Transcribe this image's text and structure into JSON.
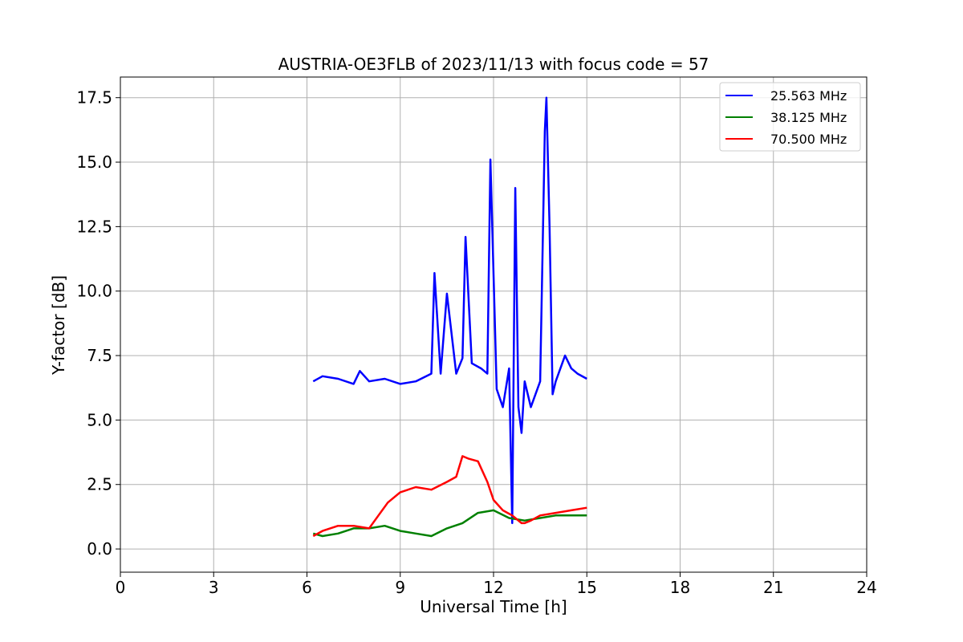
{
  "chart_data": {
    "type": "line",
    "title": "AUSTRIA-OE3FLB of 2023/11/13 with focus code = 57",
    "xlabel": "Universal Time [h]",
    "ylabel": "Y-factor [dB]",
    "xlim": [
      0,
      24
    ],
    "ylim": [
      -0.9,
      18.3
    ],
    "xticks": [
      0,
      3,
      6,
      9,
      12,
      15,
      18,
      21,
      24
    ],
    "xtick_labels": [
      "0",
      "3",
      "6",
      "9",
      "12",
      "15",
      "18",
      "21",
      "24"
    ],
    "yticks": [
      0.0,
      2.5,
      5.0,
      7.5,
      10.0,
      12.5,
      15.0,
      17.5
    ],
    "ytick_labels": [
      "0.0",
      "2.5",
      "5.0",
      "7.5",
      "10.0",
      "12.5",
      "15.0",
      "17.5"
    ],
    "grid": true,
    "legend_position": "upper right",
    "series": [
      {
        "name": "25.563 MHz",
        "color": "#0000ff",
        "x": [
          6.2,
          6.5,
          7.0,
          7.5,
          7.7,
          8.0,
          8.5,
          9.0,
          9.5,
          10.0,
          10.1,
          10.3,
          10.5,
          10.8,
          11.0,
          11.1,
          11.3,
          11.6,
          11.8,
          11.9,
          12.1,
          12.3,
          12.5,
          12.6,
          12.7,
          12.8,
          12.9,
          13.0,
          13.2,
          13.5,
          13.65,
          13.7,
          13.8,
          13.9,
          14.0,
          14.3,
          14.5,
          14.7,
          15.0
        ],
        "y": [
          6.5,
          6.7,
          6.6,
          6.4,
          6.9,
          6.5,
          6.6,
          6.4,
          6.5,
          6.8,
          10.7,
          6.8,
          9.9,
          6.8,
          7.4,
          12.1,
          7.2,
          7.0,
          6.8,
          15.1,
          6.2,
          5.5,
          7.0,
          1.0,
          14.0,
          5.5,
          4.5,
          6.5,
          5.5,
          6.5,
          16.2,
          17.5,
          12.5,
          6.0,
          6.5,
          7.5,
          7.0,
          6.8,
          6.6
        ]
      },
      {
        "name": "38.125 MHz",
        "color": "#008000",
        "x": [
          6.2,
          6.5,
          7.0,
          7.5,
          8.0,
          8.5,
          9.0,
          9.5,
          10.0,
          10.5,
          11.0,
          11.5,
          12.0,
          12.5,
          13.0,
          13.5,
          14.0,
          14.5,
          15.0
        ],
        "y": [
          0.6,
          0.5,
          0.6,
          0.8,
          0.8,
          0.9,
          0.7,
          0.6,
          0.5,
          0.8,
          1.0,
          1.4,
          1.5,
          1.2,
          1.1,
          1.2,
          1.3,
          1.3,
          1.3
        ]
      },
      {
        "name": "70.500 MHz",
        "color": "#ff0000",
        "x": [
          6.2,
          6.5,
          7.0,
          7.5,
          8.0,
          8.3,
          8.6,
          9.0,
          9.5,
          10.0,
          10.5,
          10.8,
          11.0,
          11.2,
          11.5,
          11.8,
          12.0,
          12.3,
          12.6,
          12.9,
          13.0,
          13.2,
          13.5,
          14.0,
          14.5,
          15.0
        ],
        "y": [
          0.5,
          0.7,
          0.9,
          0.9,
          0.8,
          1.3,
          1.8,
          2.2,
          2.4,
          2.3,
          2.6,
          2.8,
          3.6,
          3.5,
          3.4,
          2.6,
          1.9,
          1.5,
          1.3,
          1.0,
          1.0,
          1.1,
          1.3,
          1.4,
          1.5,
          1.6
        ]
      }
    ]
  }
}
